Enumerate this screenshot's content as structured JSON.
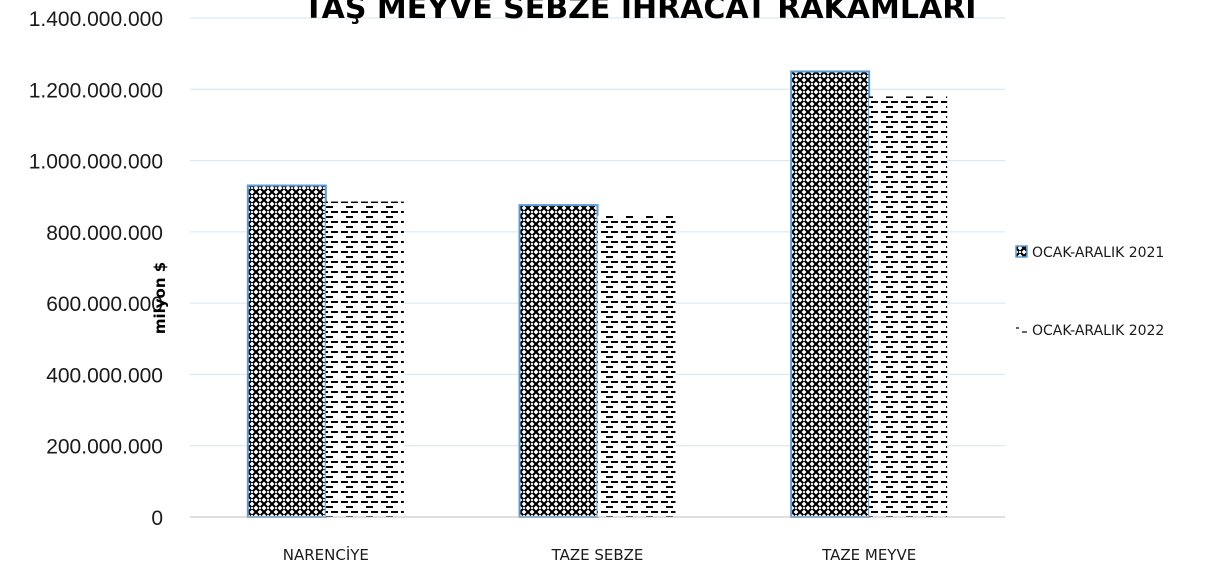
{
  "chart_data": {
    "type": "bar",
    "title": "TAŞ MEYVE SEBZE İHRACAT RAKAMLARI",
    "xlabel": "",
    "ylabel": "milyon $",
    "categories": [
      "NARENCİYE",
      "TAZE SEBZE",
      "TAZE MEYVE"
    ],
    "series": [
      {
        "name": "OCAK-ARALIK 2021",
        "values": [
          930000000,
          875000000,
          1250000000
        ],
        "pattern": "crosshatch",
        "color": "#000000",
        "border": "#5b9bd5"
      },
      {
        "name": "OCAK-ARALIK 2022",
        "values": [
          885000000,
          845000000,
          1180000000
        ],
        "pattern": "dashes",
        "color": "#000000"
      }
    ],
    "yticks": [
      "0",
      "200.000.000",
      "400.000.000",
      "600.000.000",
      "800.000.000",
      "1.000.000.000",
      "1.200.000.000",
      "1.400.000.000"
    ],
    "ylim": [
      0,
      1400000000
    ],
    "grid": true,
    "legend": "right"
  }
}
